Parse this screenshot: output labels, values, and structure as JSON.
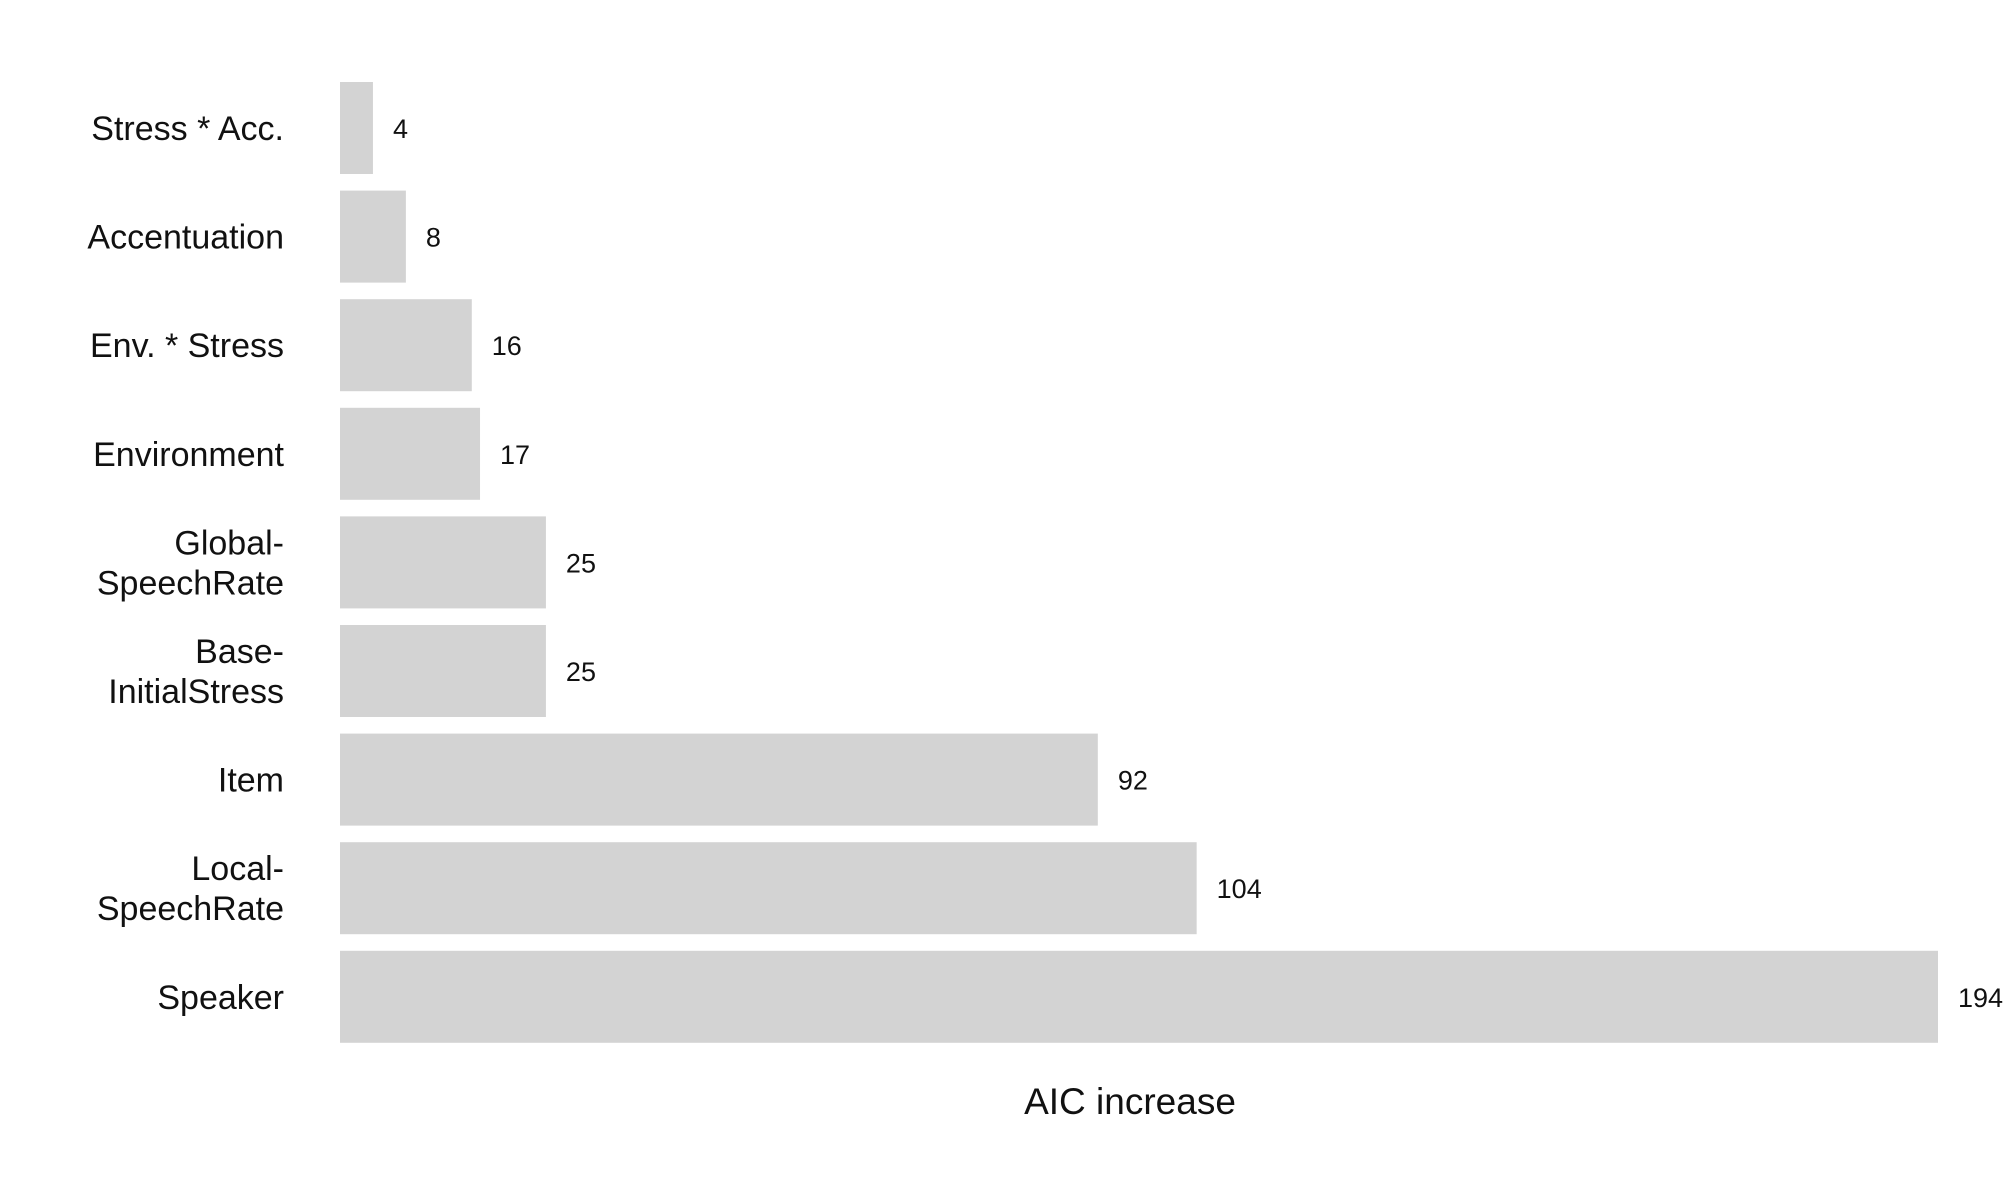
{
  "chart_data": {
    "type": "bar",
    "orientation": "horizontal",
    "categories": [
      "Stress * Acc.",
      "Accentuation",
      "Env. * Stress",
      "Environment",
      "Global-\nSpeechRate",
      "Base-\nInitialStress",
      "Item",
      "Local-\nSpeechRate",
      "Speaker"
    ],
    "values": [
      4,
      8,
      16,
      17,
      25,
      25,
      92,
      104,
      194
    ],
    "value_labels": [
      "4",
      "8",
      "16",
      "17",
      "25",
      "25",
      "92",
      "104",
      "194"
    ],
    "xlabel": "AIC increase",
    "ylabel": "",
    "xlim": [
      0,
      194
    ],
    "grid": false,
    "legend": "none",
    "bar_color": "#d3d3d3"
  }
}
